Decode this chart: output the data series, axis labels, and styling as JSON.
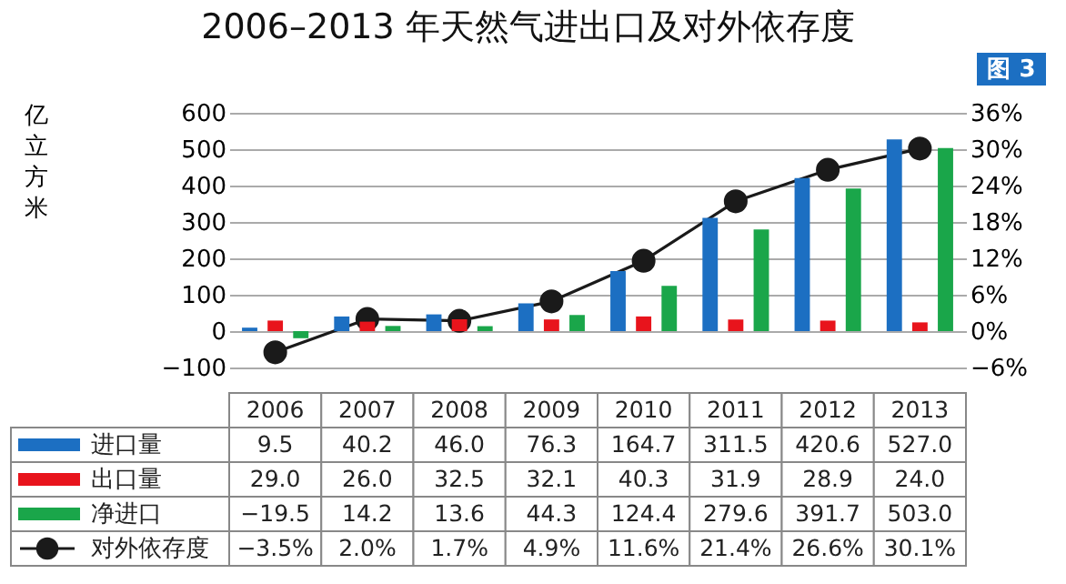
{
  "chart_data": {
    "type": "bar",
    "title": "2006–2013 年天然气进出口及对外依存度",
    "ylabel": "亿立方米",
    "annotations": [
      "图 3"
    ],
    "categories": [
      "2006",
      "2007",
      "2008",
      "2009",
      "2010",
      "2011",
      "2012",
      "2013"
    ],
    "series": [
      {
        "name": "进口量",
        "color": "#1c6fc2",
        "values": [
          9.5,
          40.2,
          46.0,
          76.3,
          164.7,
          311.5,
          420.6,
          527.0
        ],
        "value_labels": [
          "9.5",
          "40.2",
          "46.0",
          "76.3",
          "164.7",
          "311.5",
          "420.6",
          "527.0"
        ]
      },
      {
        "name": "出口量",
        "color": "#e8141c",
        "values": [
          29.0,
          26.0,
          32.5,
          32.1,
          40.3,
          31.9,
          28.9,
          24.0
        ],
        "value_labels": [
          "29.0",
          "26.0",
          "32.5",
          "32.1",
          "40.3",
          "31.9",
          "28.9",
          "24.0"
        ]
      },
      {
        "name": "净进口",
        "color": "#1aa64a",
        "values": [
          -19.5,
          14.2,
          13.6,
          44.3,
          124.4,
          279.6,
          391.7,
          503.0
        ],
        "value_labels": [
          "−19.5",
          "14.2",
          "13.6",
          "44.3",
          "124.4",
          "279.6",
          "391.7",
          "503.0"
        ]
      },
      {
        "name": "对外依存度",
        "type": "line",
        "axis": "y2",
        "color": "#1a1a1a",
        "values": [
          -3.5,
          2.0,
          1.7,
          4.9,
          11.6,
          21.4,
          26.6,
          30.1
        ],
        "value_labels": [
          "−3.5%",
          "2.0%",
          "1.7%",
          "4.9%",
          "11.6%",
          "21.4%",
          "26.6%",
          "30.1%"
        ]
      }
    ],
    "ylim": [
      -100,
      600
    ],
    "yticks": [
      {
        "value": -100,
        "label": "−100"
      },
      0,
      100,
      200,
      300,
      400,
      500,
      600
    ],
    "y2lim": [
      -6,
      36
    ],
    "y2ticks": [
      {
        "value": -6,
        "label": "−6%"
      },
      {
        "value": 0,
        "label": "0%"
      },
      {
        "value": 6,
        "label": "6%"
      },
      {
        "value": 12,
        "label": "12%"
      },
      {
        "value": 18,
        "label": "18%"
      },
      {
        "value": 24,
        "label": "24%"
      },
      {
        "value": 30,
        "label": "30%"
      },
      {
        "value": 36,
        "label": "36%"
      }
    ],
    "grid": "y",
    "legend": "bottom",
    "marker": "circle",
    "line_style": "solid"
  }
}
